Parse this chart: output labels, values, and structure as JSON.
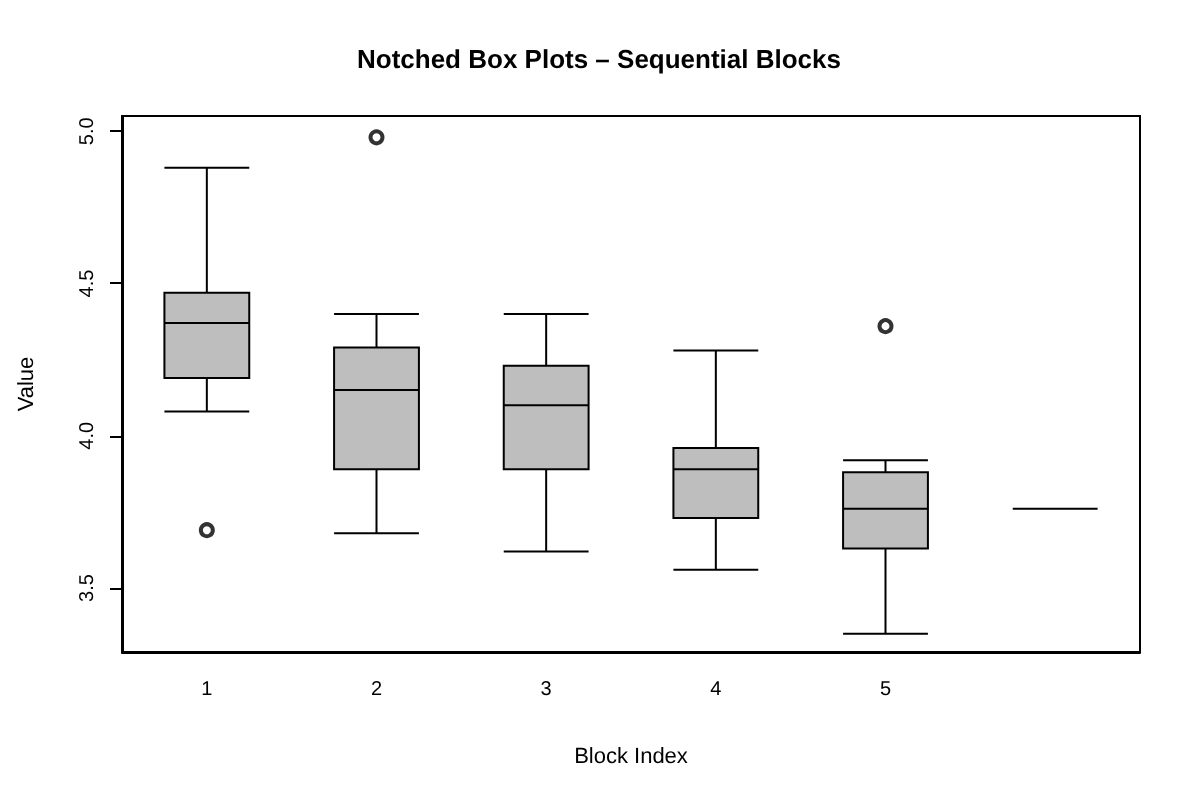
{
  "chart_data": {
    "type": "box",
    "title": "Notched Box Plots – Sequential Blocks",
    "xlabel": "Block Index",
    "ylabel": "Value",
    "categories": [
      "1",
      "2",
      "3",
      "4",
      "5",
      null
    ],
    "boxes": [
      {
        "low": 4.08,
        "q1": 4.19,
        "median": 4.37,
        "q3": 4.47,
        "high": 4.88,
        "outliers": [
          3.69
        ]
      },
      {
        "low": 3.68,
        "q1": 3.89,
        "median": 4.15,
        "q3": 4.29,
        "high": 4.4,
        "outliers": [
          4.98
        ]
      },
      {
        "low": 3.62,
        "q1": 3.89,
        "median": 4.1,
        "q3": 4.23,
        "high": 4.4
      },
      {
        "low": 3.56,
        "q1": 3.73,
        "median": 3.89,
        "q3": 3.96,
        "high": 4.28
      },
      {
        "low": 3.35,
        "q1": 3.63,
        "median": 3.76,
        "q3": 3.88,
        "high": 3.92,
        "outliers": [
          4.36
        ]
      },
      {
        "low": 3.76,
        "q1": 3.76,
        "median": 3.76,
        "q3": 3.76,
        "high": 3.76
      }
    ],
    "colors": [
      "#bebebe",
      "#bebebe",
      "#bebebe",
      "#bebebe",
      "#bebebe",
      "#000000"
    ],
    "ylim": [
      3.29,
      5.05
    ],
    "yticks": [
      3.5,
      {
        "value": 4,
        "label": "4.0"
      },
      4.5,
      {
        "value": 5,
        "label": "5.0"
      }
    ],
    "grid": false
  }
}
